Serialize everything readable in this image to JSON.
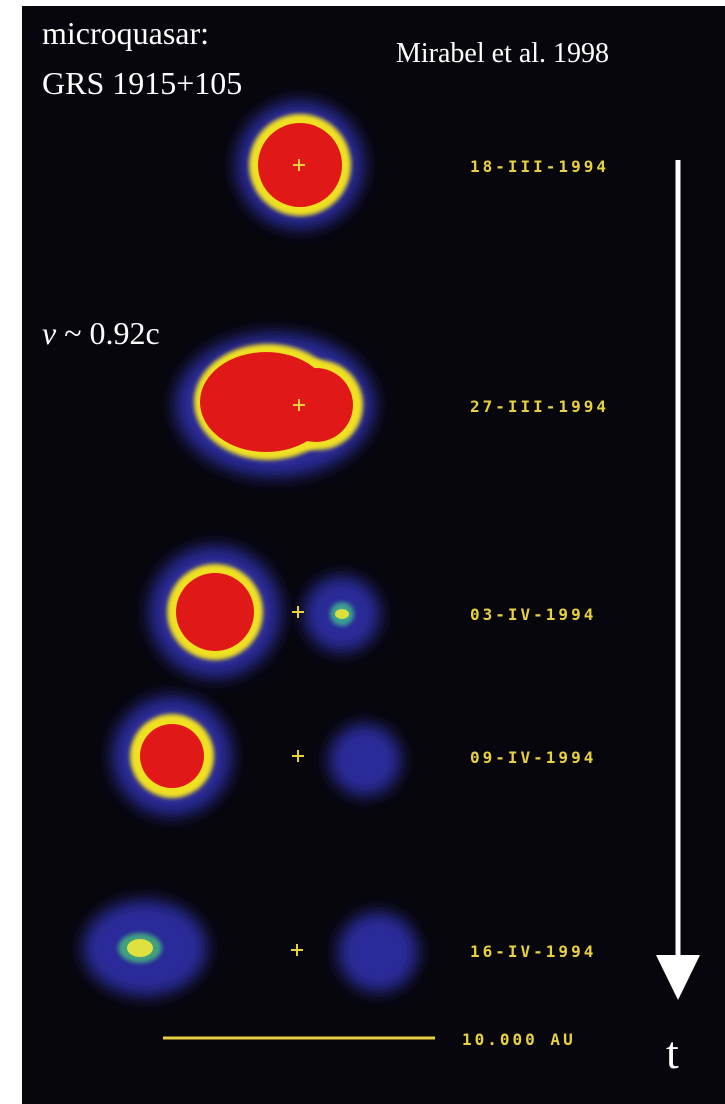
{
  "annotations": {
    "object_label": [
      "microquasar:",
      "GRS 1915+105"
    ],
    "credit": "Mirabel et al. 1998",
    "velocity": {
      "symbol": "v",
      "text": "~ 0.92c"
    },
    "time_axis": "t"
  },
  "epochs": [
    "18-III-1994",
    "27-III-1994",
    "03-IV-1994",
    "09-IV-1994",
    "16-IV-1994"
  ],
  "scale_bar": "10.000 AU"
}
